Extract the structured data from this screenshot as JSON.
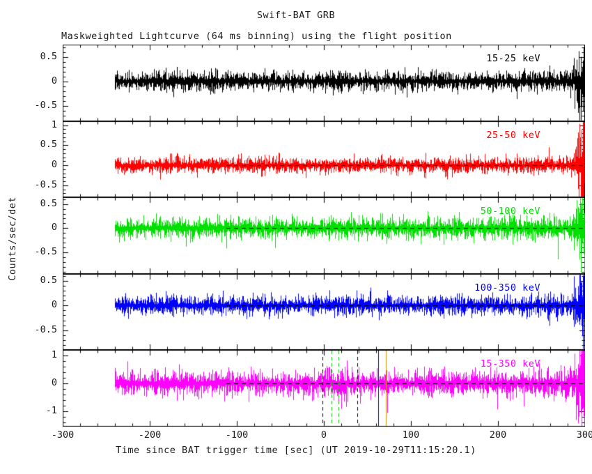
{
  "text_color": "#1c1c1c",
  "chart_data": {
    "type": "line",
    "title": "Swift-BAT GRB",
    "subtitle": "Maskweighted Lightcurve (64 ms binning) using the flight position",
    "xlabel": "Time since BAT trigger time [sec] (UT 2019-10-29T11:15:20.1)",
    "ylabel": "Counts/sec/det",
    "xlim": [
      -300,
      300
    ],
    "xticks": [
      -300,
      -200,
      -100,
      0,
      100,
      200,
      300
    ],
    "x_minor_tick_step": 20,
    "grid": false,
    "legend_position": "inside-top-right-per-panel",
    "data_start": -240,
    "data_end": 300,
    "baseline": 0,
    "end_noise_flare_start": 280,
    "zero_line": {
      "style": "dashed",
      "color": "#000000",
      "from": -112,
      "to": 300
    },
    "panels": [
      {
        "label": "15-25 keV",
        "color": "#000000",
        "ylim": [
          -0.82,
          0.75
        ],
        "yticks": [
          0.5,
          0,
          -0.5
        ],
        "y_minor_tick_step": 0.1,
        "noise_sigma": 0.1,
        "flare_mult": 5
      },
      {
        "label": "25-50 keV",
        "color": "#ff0000",
        "ylim": [
          -0.8,
          1.1
        ],
        "yticks": [
          1,
          0.5,
          0,
          -0.5
        ],
        "y_minor_tick_step": 0.1,
        "noise_sigma": 0.1,
        "flare_mult": 8
      },
      {
        "label": "50-100 keV",
        "color": "#00e000",
        "ylim": [
          -0.95,
          0.64
        ],
        "yticks": [
          0.5,
          0,
          -0.5
        ],
        "y_minor_tick_step": 0.1,
        "noise_sigma": 0.11,
        "flare_mult": 6
      },
      {
        "label": "100-350 keV",
        "color": "#0000ff",
        "ylim": [
          -0.9,
          0.64
        ],
        "yticks": [
          0.5,
          0,
          -0.5
        ],
        "y_minor_tick_step": 0.1,
        "noise_sigma": 0.1,
        "flare_mult": 6
      },
      {
        "label": "15-350 keV",
        "color": "#ff00ff",
        "ylim": [
          -1.55,
          1.2
        ],
        "yticks": [
          1,
          0,
          -1
        ],
        "y_minor_tick_step": 0.2,
        "noise_sigma": 0.22,
        "flare_mult": 5,
        "burst": {
          "from": -2,
          "to": 28,
          "mult": 1.45
        }
      }
    ],
    "markers": {
      "panel": "15-350 keV",
      "vlines": [
        {
          "x": -2,
          "color": "#000000",
          "style": "dashed"
        },
        {
          "x": 9,
          "color": "#00c000",
          "style": "dashed"
        },
        {
          "x": 17,
          "color": "#00c000",
          "style": "dashed"
        },
        {
          "x": 38,
          "color": "#000000",
          "style": "dashed"
        },
        {
          "x": 62,
          "color": "#000066",
          "style": "solid"
        },
        {
          "x": 71,
          "color": "#cc9900",
          "style": "solid"
        }
      ]
    }
  }
}
